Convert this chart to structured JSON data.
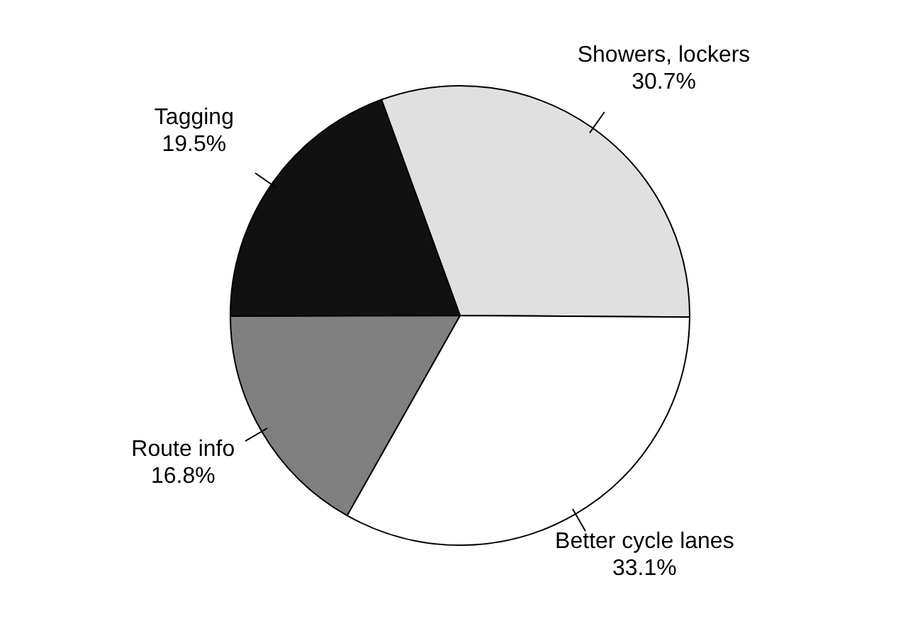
{
  "chart_data": {
    "type": "pie",
    "categories": [
      "Showers, lockers",
      "Better cycle lanes",
      "Route info",
      "Tagging"
    ],
    "values": [
      30.7,
      33.1,
      16.8,
      19.5
    ],
    "value_labels": [
      "30.7%",
      "33.1%",
      "16.8%",
      "19.5%"
    ],
    "colors": [
      "#e0e0e0",
      "#ffffff",
      "#808080",
      "#111111"
    ]
  }
}
